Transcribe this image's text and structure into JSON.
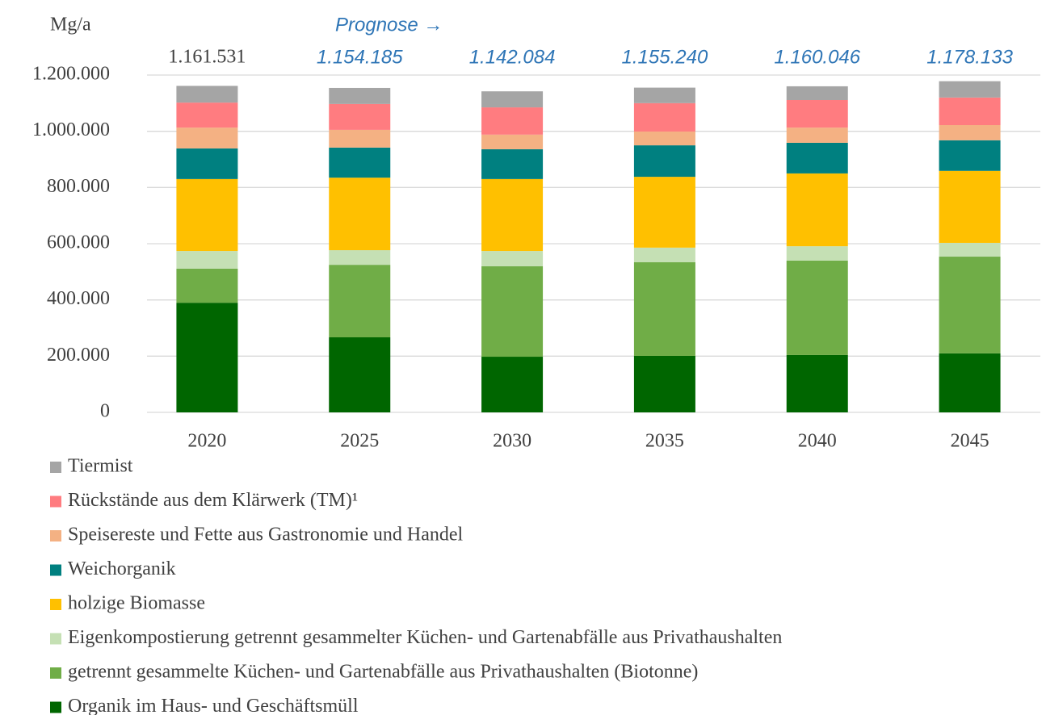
{
  "chart_data": {
    "type": "stacked_bar",
    "y_label": "Mg/a",
    "annotation": "Prognose →",
    "categories": [
      "2020",
      "2025",
      "2030",
      "2035",
      "2040",
      "2045"
    ],
    "totals": [
      1161531,
      1154185,
      1142084,
      1155240,
      1160046,
      1178133
    ],
    "total_labels": [
      "1.161.531",
      "1.154.185",
      "1.142.084",
      "1.155.240",
      "1.160.046",
      "1.178.133"
    ],
    "series": [
      {
        "name": "Organik im Haus- und Geschäftsmüll",
        "color": "#006600",
        "values": [
          390000,
          267000,
          198000,
          201000,
          204000,
          210000
        ]
      },
      {
        "name": "getrennt gesammelte Küchen- und Gartenabfälle aus Privathaushalten (Biotonne)",
        "color": "#70ad47",
        "values": [
          121000,
          258000,
          322000,
          333000,
          336000,
          344000
        ]
      },
      {
        "name": "Eigenkompostierung getrennt gesammelter Küchen- und Gartenabfälle aus Privathaushalten",
        "color": "#c5e0b4",
        "values": [
          63000,
          52000,
          54000,
          52000,
          51000,
          49000
        ]
      },
      {
        "name": "holzige Biomasse",
        "color": "#ffc000",
        "values": [
          256000,
          258000,
          256000,
          252000,
          259000,
          256000
        ]
      },
      {
        "name": "Weichorganik",
        "color": "#008080",
        "values": [
          109000,
          107000,
          106000,
          112000,
          109000,
          109000
        ]
      },
      {
        "name": "Speisereste und Fette aus Gastronomie und Handel",
        "color": "#f4b183",
        "values": [
          74000,
          63000,
          52000,
          49000,
          54000,
          54000
        ]
      },
      {
        "name": "Rückstände aus dem Klärwerk (TM)¹",
        "color": "#ff7c80",
        "values": [
          89000,
          92000,
          97000,
          101000,
          98000,
          98000
        ]
      },
      {
        "name": "Tiermist",
        "color": "#a5a5a5",
        "values": [
          59531,
          57185,
          57084,
          55240,
          49046,
          58133
        ]
      }
    ],
    "ylim": [
      0,
      1200000
    ],
    "yticks": [
      0,
      {
        "value": 200000,
        "label": "200.000"
      },
      {
        "value": 400000,
        "label": "400.000"
      },
      {
        "value": 600000,
        "label": "600.000"
      },
      {
        "value": 800000,
        "label": "800.000"
      },
      {
        "value": 1000000,
        "label": "1.000.000"
      },
      {
        "value": 1200000,
        "label": "1.200.000"
      }
    ],
    "grid": true
  }
}
